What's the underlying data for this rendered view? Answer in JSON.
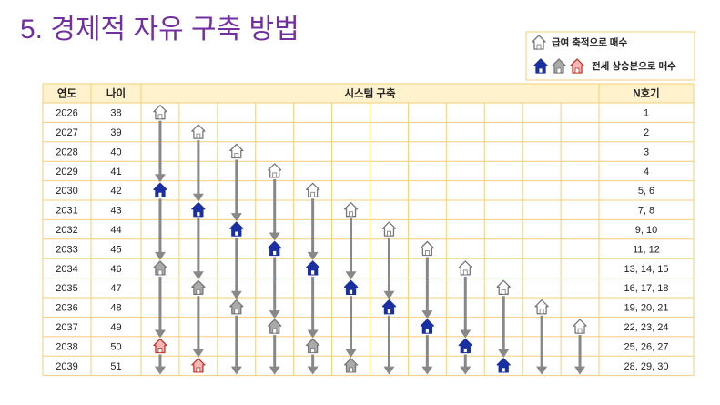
{
  "title": "5. 경제적 자유 구축 방법",
  "legend": {
    "salary": "급여 축적으로 매수",
    "deposit": "전세 상승분으로 매수"
  },
  "table": {
    "headers": [
      "연도",
      "나이",
      "시스템 구축",
      "N호기"
    ],
    "rows": [
      [
        2026,
        38,
        "1"
      ],
      [
        2027,
        39,
        "2"
      ],
      [
        2028,
        40,
        "3"
      ],
      [
        2029,
        41,
        "4"
      ],
      [
        2030,
        42,
        "5, 6"
      ],
      [
        2031,
        43,
        "7, 8"
      ],
      [
        2032,
        44,
        "9, 10"
      ],
      [
        2033,
        45,
        "11, 12"
      ],
      [
        2034,
        46,
        "13, 14, 15"
      ],
      [
        2035,
        47,
        "16, 17, 18"
      ],
      [
        2036,
        48,
        "19, 20, 21"
      ],
      [
        2037,
        49,
        "22, 23, 24"
      ],
      [
        2038,
        50,
        "25, 26, 27"
      ],
      [
        2039,
        51,
        "28, 29, 30"
      ]
    ]
  }
}
